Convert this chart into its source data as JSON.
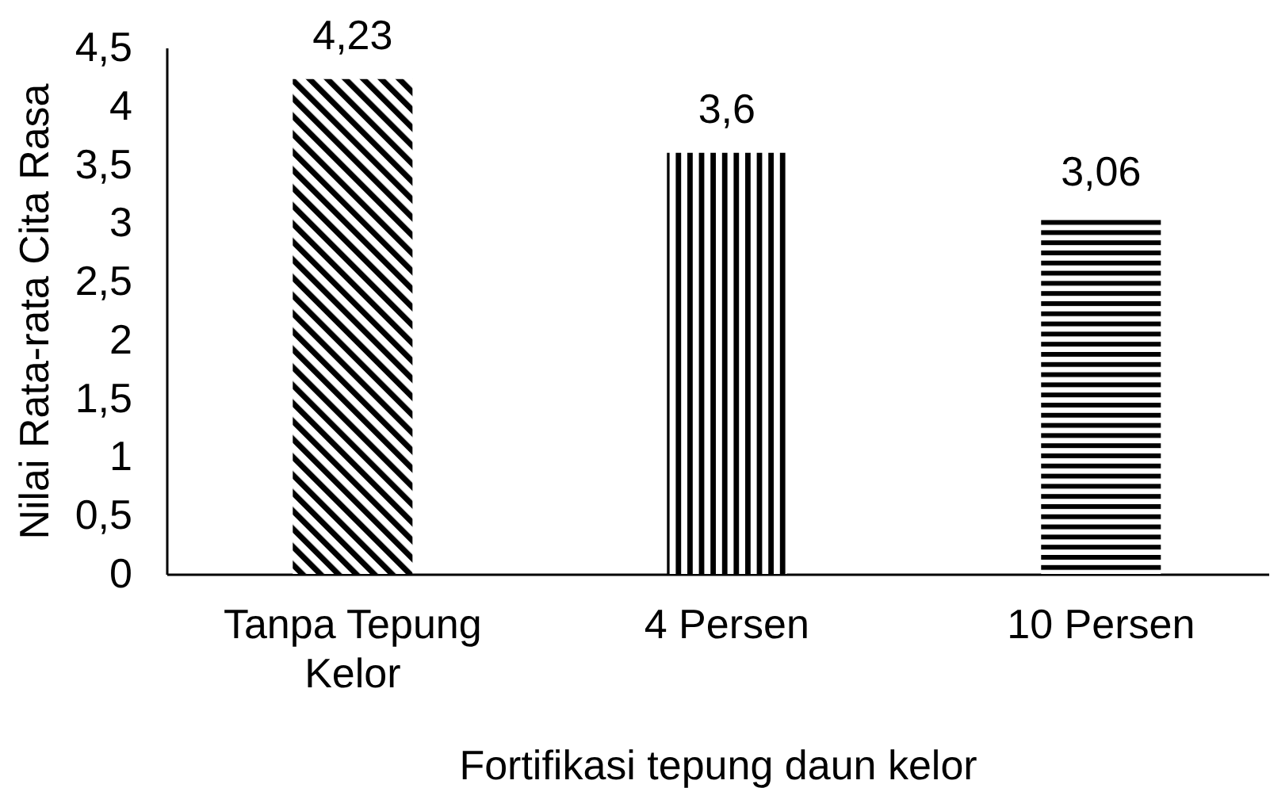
{
  "chart_data": {
    "type": "bar",
    "xlabel": "Fortifikasi tepung daun kelor",
    "ylabel": "Nilai Rata-rata Cita Rasa",
    "categories": [
      "Tanpa Tepung Kelor",
      "4 Persen",
      "10 Persen"
    ],
    "values": [
      4.23,
      3.6,
      3.06
    ],
    "colors": [
      "#000000",
      "#000000",
      "#000000"
    ],
    "value_labels": [
      "4,23",
      "3,6",
      "3,06"
    ],
    "ylim": [
      0,
      4.5
    ],
    "yticks": [
      0,
      {
        "value": 0.5,
        "label": "0,5"
      },
      1,
      {
        "value": 1.5,
        "label": "1,5"
      },
      2,
      {
        "value": 2.5,
        "label": "2,5"
      },
      3,
      {
        "value": 3.5,
        "label": "3,5"
      },
      4,
      {
        "value": 4.5,
        "label": "4,5"
      }
    ]
  }
}
